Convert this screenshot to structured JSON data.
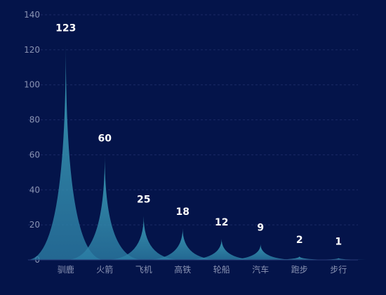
{
  "chart_data": {
    "type": "bar",
    "categories": [
      "驯鹿",
      "火箭",
      "飞机",
      "高铁",
      "轮船",
      "汽车",
      "跑步",
      "步行"
    ],
    "values": [
      123,
      60,
      25,
      18,
      12,
      9,
      2,
      1
    ],
    "ylim": [
      0,
      140
    ],
    "yticks": [
      0,
      20,
      40,
      60,
      80,
      100,
      120,
      140
    ],
    "grid": true,
    "legend": "none",
    "mark_shape": "pictorial-spike",
    "colors": {
      "background": "#04144a",
      "fill_top": "#3fa7bf",
      "fill_bottom": "#2c7fa6",
      "label": "#ffffff",
      "axis_text": "#8a93b3",
      "grid": "#1b2a66"
    }
  }
}
